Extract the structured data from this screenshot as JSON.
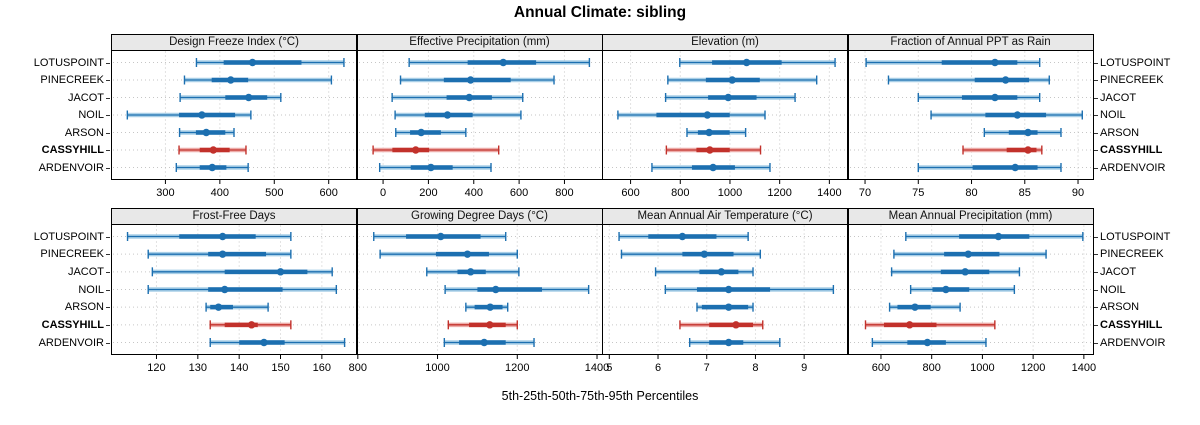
{
  "title": "Annual Climate: sibling",
  "caption": "5th-25th-50th-75th-95th Percentiles",
  "colors": {
    "series_blue": "#1c6fb0",
    "series_blue_light": "#a9cfe7",
    "highlight_red": "#c2312b",
    "highlight_red_light": "#edaca9",
    "grid": "#c6c6c6",
    "strip_bg": "#e8e8e8",
    "panel_border": "#000000"
  },
  "chart_data": {
    "type": "percentile-dotplot",
    "title": "Annual Climate: sibling",
    "caption": "5th-25th-50th-75th-95th Percentiles",
    "percentiles": [
      5,
      25,
      50,
      75,
      95
    ],
    "grid": [
      2,
      4
    ],
    "sites": [
      "LOTUSPOINT",
      "PINECREEK",
      "JACOT",
      "NOIL",
      "ARSON",
      "CASSYHILL",
      "ARDENVOIR"
    ],
    "highlight_site": "CASSYHILL",
    "panels": [
      {
        "title": "Design Freeze Index (°C)",
        "xlim": [
          200,
          652
        ],
        "ticks": [
          300,
          400,
          500,
          600
        ],
        "values": [
          [
            357,
            407,
            460,
            550,
            628
          ],
          [
            335,
            385,
            420,
            452,
            605
          ],
          [
            327,
            410,
            453,
            487,
            512
          ],
          [
            230,
            325,
            367,
            428,
            457
          ],
          [
            326,
            356,
            375,
            410,
            426
          ],
          [
            325,
            363,
            388,
            418,
            448
          ],
          [
            320,
            363,
            386,
            412,
            452
          ]
        ]
      },
      {
        "title": "Effective Precipitation (mm)",
        "xlim": [
          -115,
          970
        ],
        "ticks": [
          0,
          200,
          400,
          600,
          800
        ],
        "values": [
          [
            115,
            373,
            530,
            675,
            910
          ],
          [
            77,
            268,
            386,
            563,
            754
          ],
          [
            40,
            280,
            380,
            480,
            616
          ],
          [
            53,
            184,
            284,
            395,
            608
          ],
          [
            56,
            119,
            168,
            255,
            365
          ],
          [
            -44,
            41,
            144,
            203,
            510
          ],
          [
            -15,
            122,
            211,
            307,
            476
          ]
        ]
      },
      {
        "title": "Elevation (m)",
        "xlim": [
          485,
          1475
        ],
        "ticks": [
          600,
          800,
          1000,
          1200,
          1400
        ],
        "values": [
          [
            798,
            928,
            1067,
            1208,
            1423
          ],
          [
            750,
            903,
            1009,
            1120,
            1349
          ],
          [
            741,
            912,
            993,
            1107,
            1262
          ],
          [
            549,
            704,
            909,
            999,
            1141
          ],
          [
            827,
            871,
            916,
            999,
            1063
          ],
          [
            744,
            865,
            919,
            999,
            1123
          ],
          [
            686,
            847,
            932,
            1020,
            1161
          ]
        ]
      },
      {
        "title": "Fraction of Annual PPT as Rain",
        "xlim": [
          68.4,
          91.5
        ],
        "ticks": [
          70,
          75,
          80,
          85,
          90
        ],
        "values": [
          [
            70.1,
            77.2,
            82.2,
            84.3,
            86.4
          ],
          [
            72.2,
            80.3,
            83.2,
            85.4,
            87.3
          ],
          [
            75.0,
            79.1,
            82.2,
            84.3,
            86.4
          ],
          [
            76.2,
            81.3,
            84.3,
            87.0,
            90.4
          ],
          [
            81.2,
            83.5,
            85.3,
            86.2,
            88.4
          ],
          [
            79.2,
            83.3,
            85.3,
            86.1,
            86.6
          ],
          [
            75.0,
            80.1,
            84.1,
            86.2,
            88.4
          ]
        ]
      },
      {
        "title": "Frost-Free Days",
        "xlim": [
          109,
          168.5
        ],
        "ticks": [
          120,
          130,
          140,
          150,
          160
        ],
        "values": [
          [
            113,
            125.5,
            136,
            144,
            152.5
          ],
          [
            118,
            132.5,
            136,
            146.5,
            152.5
          ],
          [
            119,
            136.5,
            150,
            156.5,
            162.5
          ],
          [
            118,
            132.5,
            136.5,
            150.5,
            163.5
          ],
          [
            132,
            133,
            135,
            138.5,
            147
          ],
          [
            133,
            136.5,
            143,
            144.5,
            152.5
          ],
          [
            133,
            140,
            146,
            151,
            165.5
          ]
        ]
      },
      {
        "title": "Growing Degree Days (°C)",
        "xlim": [
          798,
          1415
        ],
        "ticks": [
          800,
          1000,
          1200,
          1400
        ],
        "values": [
          [
            840,
            921,
            1008,
            1108,
            1171
          ],
          [
            856,
            996,
            1075,
            1129,
            1200
          ],
          [
            973,
            1050,
            1083,
            1121,
            1204
          ],
          [
            1019,
            1100,
            1146,
            1262,
            1379
          ],
          [
            1071,
            1093,
            1132,
            1163,
            1176
          ],
          [
            1027,
            1079,
            1131,
            1171,
            1200
          ],
          [
            1017,
            1054,
            1117,
            1171,
            1242
          ]
        ]
      },
      {
        "title": "Mean Annual Air Temperature (°C)",
        "xlim": [
          4.85,
          9.9
        ],
        "ticks": [
          5,
          6,
          7,
          8,
          9
        ],
        "values": [
          [
            5.2,
            5.8,
            6.5,
            7.2,
            7.85
          ],
          [
            5.25,
            6.5,
            6.95,
            7.55,
            8.1
          ],
          [
            5.95,
            6.85,
            7.3,
            7.65,
            7.95
          ],
          [
            6.15,
            6.8,
            7.45,
            8.3,
            9.6
          ],
          [
            6.8,
            6.9,
            7.45,
            7.85,
            7.95
          ],
          [
            6.45,
            7.05,
            7.6,
            7.95,
            8.15
          ],
          [
            6.65,
            7.05,
            7.45,
            7.75,
            8.5
          ]
        ]
      },
      {
        "title": "Mean Annual Precipitation (mm)",
        "xlim": [
          470,
          1440
        ],
        "ticks": [
          600,
          800,
          1000,
          1200,
          1400
        ],
        "values": [
          [
            698,
            908,
            1063,
            1185,
            1396
          ],
          [
            651,
            849,
            944,
            1067,
            1251
          ],
          [
            642,
            836,
            932,
            1027,
            1146
          ],
          [
            717,
            803,
            856,
            948,
            1126
          ],
          [
            634,
            665,
            734,
            796,
            912
          ],
          [
            539,
            612,
            713,
            819,
            1049
          ],
          [
            566,
            704,
            783,
            856,
            1014
          ]
        ]
      }
    ]
  }
}
